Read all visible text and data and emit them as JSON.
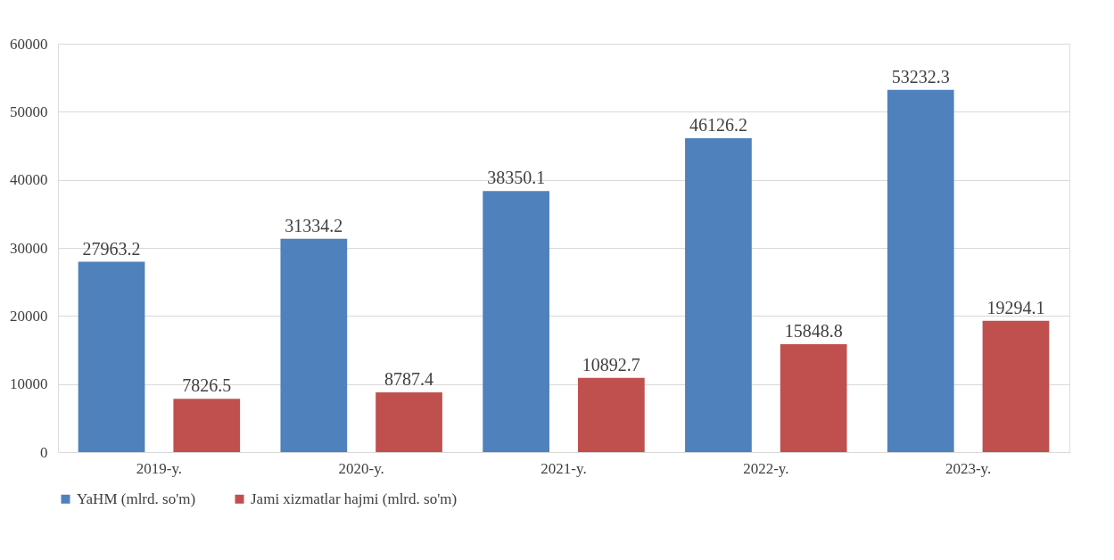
{
  "chart_data": {
    "type": "bar",
    "categories": [
      "2019-y.",
      "2020-y.",
      "2021-y.",
      "2022-y.",
      "2023-y."
    ],
    "series": [
      {
        "name": "YaHM (mlrd. so'm)",
        "color": "#4f81bd",
        "values": [
          27963.2,
          31334.2,
          38350.1,
          46126.2,
          53232.3
        ]
      },
      {
        "name": "Jami xizmatlar hajmi (mlrd. so'm)",
        "color": "#c0504d",
        "values": [
          7826.5,
          8787.4,
          10892.7,
          15848.8,
          19294.1
        ]
      }
    ],
    "ylim": [
      0,
      60000
    ],
    "yticks": [
      0,
      10000,
      20000,
      30000,
      40000,
      50000,
      60000
    ],
    "grid": "y",
    "legend": "bottom",
    "data_labels": true
  }
}
